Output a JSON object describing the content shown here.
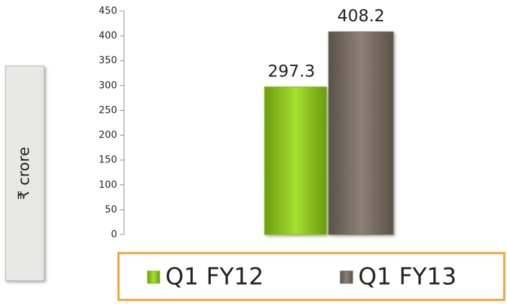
{
  "chart_data": {
    "type": "bar",
    "ylabel": "₹ crore",
    "categories": [
      null
    ],
    "series": [
      {
        "name": "Q1 FY12",
        "color": "#8cc420",
        "values": [
          297.3
        ]
      },
      {
        "name": "Q1 FY13",
        "color": "#7a7064",
        "values": [
          408.2
        ]
      }
    ],
    "ylim": [
      0,
      450
    ],
    "yticks": [
      0,
      50,
      100,
      150,
      200,
      250,
      300,
      350,
      400,
      450
    ],
    "legend": "bottom"
  }
}
